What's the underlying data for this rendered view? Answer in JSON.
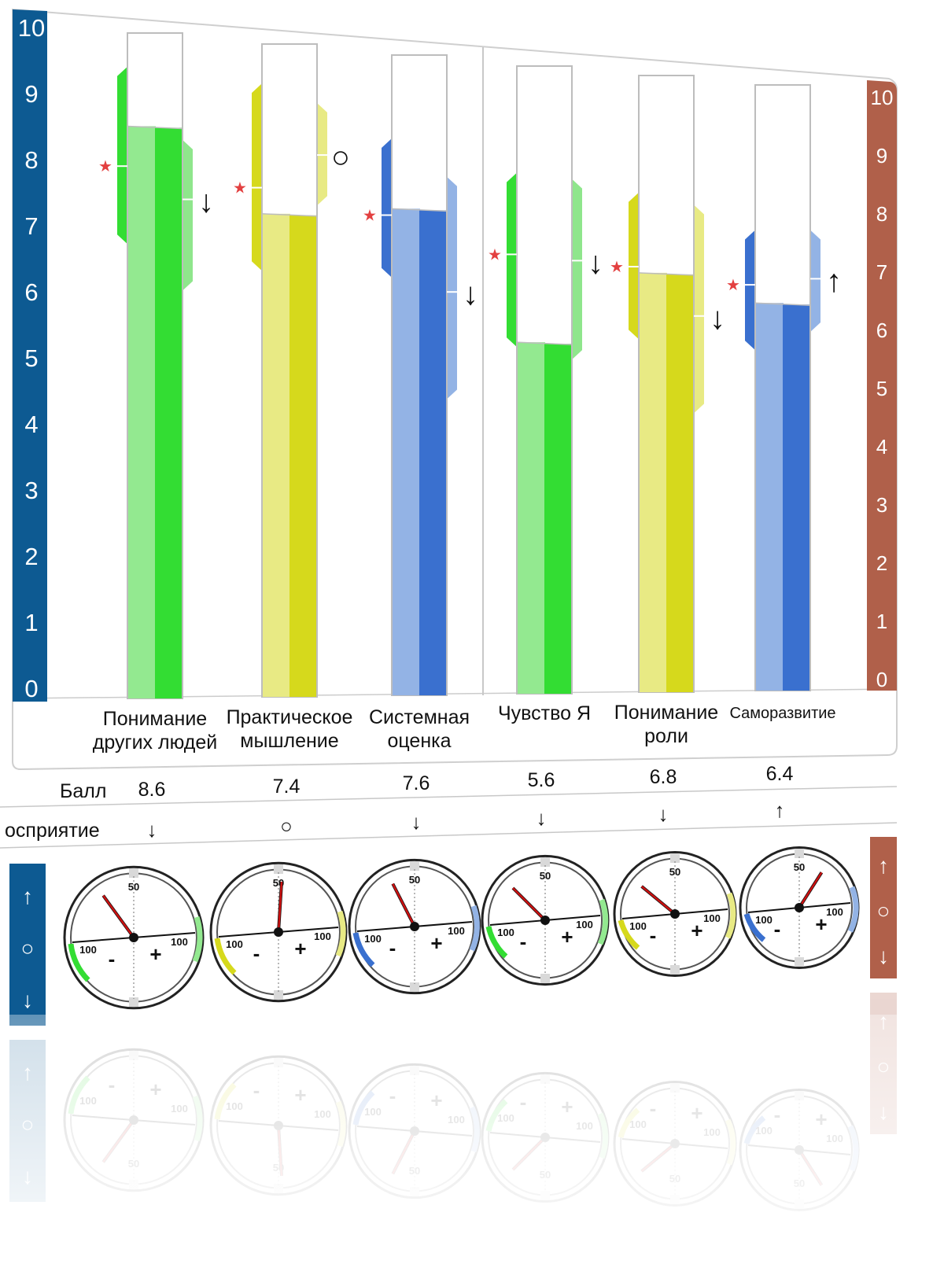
{
  "colors": {
    "left_axis": "#0d5a92",
    "right_axis": "#b0604a",
    "green_dark": "#33dd33",
    "green_light": "#93e990",
    "green_band": "#33dd33",
    "green_band_light": "#8fe68c",
    "yellow_dark": "#d6d91c",
    "yellow_light": "#e8ea84",
    "blue_dark": "#3a70cf",
    "blue_light": "#93b3e5",
    "marker_star": "#e34040",
    "needle": "#cc1111"
  },
  "left_axis": {
    "ticks": [
      "0",
      "1",
      "2",
      "3",
      "4",
      "5",
      "6",
      "7",
      "8",
      "9",
      "10"
    ]
  },
  "right_axis": {
    "ticks": [
      "0",
      "1",
      "2",
      "3",
      "4",
      "5",
      "6",
      "7",
      "8",
      "9",
      "10"
    ]
  },
  "chart_data": {
    "type": "bar",
    "ylim": [
      0,
      10
    ],
    "grid": false,
    "categories": [
      "Понимание других людей",
      "Практическое мышление",
      "Системная оценка",
      "Чувство Я",
      "Понимание роли",
      "Саморазвитие"
    ],
    "series": [
      {
        "values": [
          8.6,
          7.4,
          7.6,
          5.6,
          6.8,
          6.4
        ]
      }
    ],
    "items": [
      {
        "label_lines": [
          "Понимание",
          "других людей"
        ],
        "color": "green",
        "score": 8.6,
        "left_band": [
          6.9,
          9.4
        ],
        "right_band": [
          6.2,
          8.3
        ],
        "star": 8.0,
        "right_tick": 7.5,
        "marker": "↓",
        "perception": "↓",
        "needle_pct": 30
      },
      {
        "label_lines": [
          "Практическое",
          "мышление"
        ],
        "color": "yellow",
        "score": 7.4,
        "left_band": [
          6.6,
          9.3
        ],
        "right_band": [
          7.6,
          9.0
        ],
        "star": 7.8,
        "right_tick": 8.3,
        "marker": "○",
        "perception": "○",
        "needle_pct": 52
      },
      {
        "label_lines": [
          "Системная",
          "оценка"
        ],
        "color": "blue",
        "score": 7.6,
        "left_band": [
          6.6,
          8.6
        ],
        "right_band": [
          4.7,
          8.0
        ],
        "star": 7.5,
        "right_tick": 6.3,
        "marker": "↓",
        "perception": "↓",
        "needle_pct": 35
      },
      {
        "label_lines": [
          "Чувство Я"
        ],
        "color": "green",
        "score": 5.6,
        "left_band": [
          5.6,
          8.2
        ],
        "right_band": [
          5.4,
          8.1
        ],
        "star": 7.0,
        "right_tick": 6.9,
        "marker": "↓",
        "perception": "↓",
        "needle_pct": 25
      },
      {
        "label_lines": [
          "Понимание",
          "роли"
        ],
        "color": "yellow",
        "score": 6.8,
        "left_band": [
          5.8,
          8.0
        ],
        "right_band": [
          4.6,
          7.8
        ],
        "star": 6.9,
        "right_tick": 6.1,
        "marker": "↓",
        "perception": "↓",
        "needle_pct": 22
      },
      {
        "label_lines": [
          "Саморазвитие"
        ],
        "color": "blue",
        "score": 6.4,
        "left_band": [
          5.7,
          7.5
        ],
        "right_band": [
          6.0,
          7.5
        ],
        "star": 6.7,
        "right_tick": 6.8,
        "marker": "↑",
        "perception": "↑",
        "needle_pct": 68
      }
    ]
  },
  "rows": {
    "score_label": "Балл",
    "perception_label": "осприятие"
  },
  "gauge": {
    "top": "50",
    "left": "100",
    "right": "100",
    "minus": "-",
    "plus": "+"
  },
  "side_legend": {
    "up": "↑",
    "mid": "○",
    "down": "↓"
  }
}
